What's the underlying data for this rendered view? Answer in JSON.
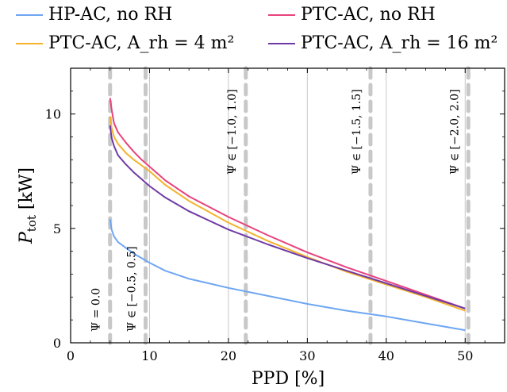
{
  "chart_data": {
    "type": "line",
    "xlabel": "PPD [%]",
    "ylabel": "P_tot [kW]",
    "xlim": [
      0,
      55
    ],
    "ylim": [
      0,
      12
    ],
    "xticks": [
      0,
      10,
      20,
      30,
      40,
      50
    ],
    "yticks": [
      0,
      5,
      10
    ],
    "grid": "vertical",
    "legend_position": "top",
    "series": [
      {
        "name": "HP-AC, no RH",
        "color": "#6ea6f2",
        "x": [
          5,
          5.2,
          5.5,
          6,
          7,
          8,
          9,
          10,
          12,
          15,
          20,
          25,
          30,
          35,
          40,
          45,
          50
        ],
        "y": [
          5.4,
          4.95,
          4.65,
          4.4,
          4.15,
          3.9,
          3.7,
          3.5,
          3.15,
          2.8,
          2.4,
          2.05,
          1.7,
          1.4,
          1.15,
          0.85,
          0.55
        ]
      },
      {
        "name": "PTC-AC, no RH",
        "color": "#e8427d",
        "x": [
          5,
          5.2,
          5.5,
          6,
          7,
          8,
          9,
          10,
          12,
          15,
          20,
          25,
          30,
          35,
          40,
          45,
          50
        ],
        "y": [
          10.7,
          10.2,
          9.6,
          9.2,
          8.75,
          8.35,
          8.0,
          7.7,
          7.1,
          6.4,
          5.5,
          4.7,
          3.95,
          3.3,
          2.7,
          2.1,
          1.5
        ]
      },
      {
        "name": "PTC-AC, A_rh = 4 m²",
        "color": "#f4b22c",
        "x": [
          5,
          5.2,
          5.5,
          6,
          7,
          8,
          9,
          10,
          12,
          15,
          20,
          25,
          30,
          35,
          40,
          45,
          50
        ],
        "y": [
          9.9,
          9.4,
          9.0,
          8.7,
          8.3,
          8.0,
          7.75,
          7.5,
          6.9,
          6.2,
          5.25,
          4.45,
          3.75,
          3.1,
          2.55,
          2.0,
          1.4
        ]
      },
      {
        "name": "PTC-AC, A_rh = 16 m²",
        "color": "#6f3aa6",
        "x": [
          5,
          5.2,
          5.5,
          6,
          7,
          8,
          9,
          10,
          12,
          15,
          20,
          25,
          30,
          35,
          40,
          45,
          50
        ],
        "y": [
          9.5,
          8.95,
          8.6,
          8.2,
          7.8,
          7.45,
          7.15,
          6.85,
          6.35,
          5.75,
          4.95,
          4.3,
          3.7,
          3.15,
          2.6,
          2.05,
          1.5
        ]
      }
    ],
    "annotations": [
      {
        "x": 5,
        "text": "Ψ = 0.0"
      },
      {
        "x": 9.5,
        "text": "Ψ ∈ [−0.5, 0.5]"
      },
      {
        "x": 22.2,
        "text": "Ψ ∈ [−1.0, 1.0]"
      },
      {
        "x": 38,
        "text": "Ψ ∈ [−1.5, 1.5]"
      },
      {
        "x": 50.4,
        "text": "Ψ ∈ [−2.0, 2.0]"
      }
    ]
  }
}
